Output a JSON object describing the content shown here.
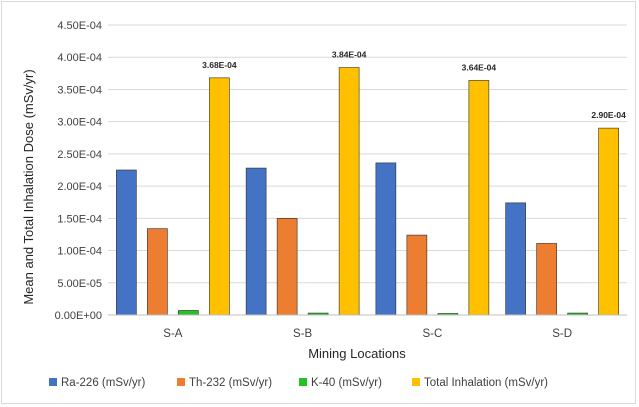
{
  "chart_data": {
    "type": "bar",
    "title": "",
    "xlabel": "Mining Locations",
    "ylabel": "Mean and Total Inhalation Dose (mSv/yr)",
    "categories": [
      "S-A",
      "S-B",
      "S-C",
      "S-D"
    ],
    "ylim": [
      0,
      0.00045
    ],
    "yticks": [
      {
        "value": 0,
        "label": "0.00E+00"
      },
      {
        "value": 5e-05,
        "label": "5.00E-05"
      },
      {
        "value": 0.0001,
        "label": "1.00E-04"
      },
      {
        "value": 0.00015,
        "label": "1.50E-04"
      },
      {
        "value": 0.0002,
        "label": "2.00E-04"
      },
      {
        "value": 0.00025,
        "label": "2.50E-04"
      },
      {
        "value": 0.0003,
        "label": "3.00E-04"
      },
      {
        "value": 0.00035,
        "label": "3.50E-04"
      },
      {
        "value": 0.0004,
        "label": "4.00E-04"
      },
      {
        "value": 0.00045,
        "label": "4.50E-04"
      }
    ],
    "grid": true,
    "legend_position": "bottom",
    "series": [
      {
        "name": "Ra-226 (mSv/yr)",
        "color": "#4472c4",
        "values": [
          0.000225,
          0.000228,
          0.000236,
          0.000174
        ]
      },
      {
        "name": "Th-232 (mSv/yr)",
        "color": "#ed7d31",
        "values": [
          0.000134,
          0.00015,
          0.000124,
          0.000111
        ]
      },
      {
        "name": "K-40 (mSv/yr)",
        "color": "#22c322",
        "values": [
          7e-06,
          3e-06,
          2e-06,
          3e-06
        ]
      },
      {
        "name": "Total Inhalation (mSv/yr)",
        "color": "#ffc000",
        "values": [
          0.000368,
          0.000384,
          0.000364,
          0.00029
        ],
        "data_labels": [
          "3.68E-04",
          "3.84E-04",
          "3.64E-04",
          "2.90E-04"
        ]
      }
    ]
  }
}
